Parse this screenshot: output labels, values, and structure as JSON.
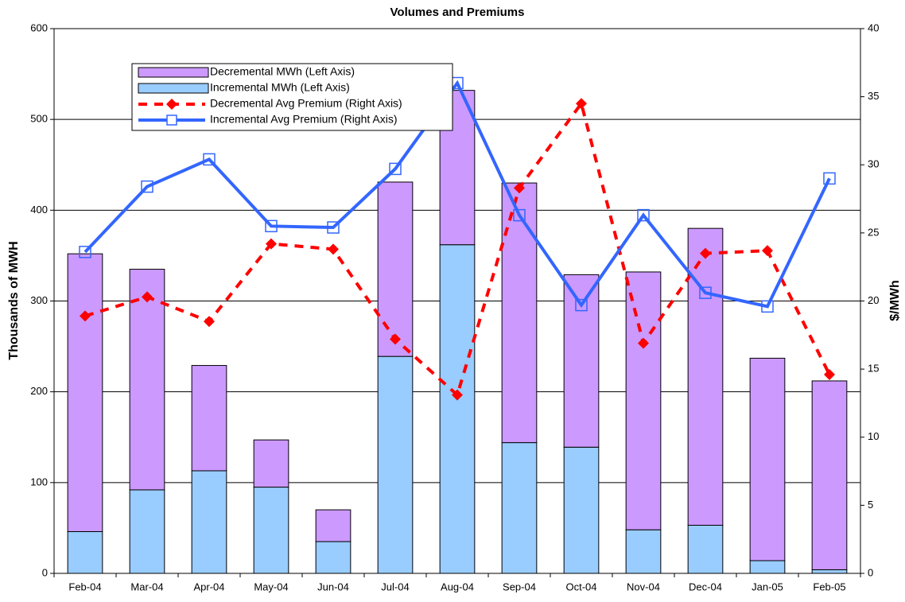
{
  "chart_data": {
    "type": "bar",
    "title": "Volumes and Premiums",
    "y_label": "Thousands of MWH",
    "y2_label": "$/MWh",
    "categories": [
      "Feb-04",
      "Mar-04",
      "Apr-04",
      "May-04",
      "Jun-04",
      "Jul-04",
      "Aug-04",
      "Sep-04",
      "Oct-04",
      "Nov-04",
      "Dec-04",
      "Jan-05",
      "Feb-05"
    ],
    "stacked": true,
    "grid": true,
    "series": [
      {
        "name": "Decremental MWh (Left Axis)",
        "type": "bar",
        "color": "#cc99ff",
        "values": [
          306,
          243,
          116,
          52,
          35,
          192,
          170,
          286,
          190,
          284,
          327,
          223,
          208
        ]
      },
      {
        "name": "Incremental MWh (Left Axis)",
        "type": "bar",
        "color": "#99ccff",
        "values": [
          46,
          92,
          113,
          95,
          35,
          239,
          362,
          144,
          139,
          48,
          53,
          14,
          4
        ]
      },
      {
        "name": "Decremental Avg Premium (Right Axis)",
        "type": "line",
        "axis": "y2",
        "color": "#ff0000",
        "dashed": true,
        "marker": "diamond",
        "values": [
          18.9,
          20.3,
          18.5,
          24.2,
          23.8,
          17.2,
          13.1,
          28.3,
          34.5,
          16.9,
          23.5,
          23.7,
          14.6
        ]
      },
      {
        "name": "Incremental Avg Premium (Right Axis)",
        "type": "line",
        "axis": "y2",
        "color": "#3366ff",
        "dashed": false,
        "marker": "square",
        "values": [
          23.6,
          28.4,
          30.4,
          25.5,
          25.4,
          29.7,
          36,
          26.3,
          19.7,
          26.3,
          20.6,
          19.6,
          29.0
        ]
      }
    ],
    "ylim": [
      0,
      600
    ],
    "yticks": [
      0,
      100,
      200,
      300,
      400,
      500,
      600
    ],
    "y2lim": [
      0,
      40
    ],
    "y2ticks": [
      0,
      5,
      10,
      15,
      20,
      25,
      30,
      35,
      40
    ],
    "legend": "top-left"
  }
}
